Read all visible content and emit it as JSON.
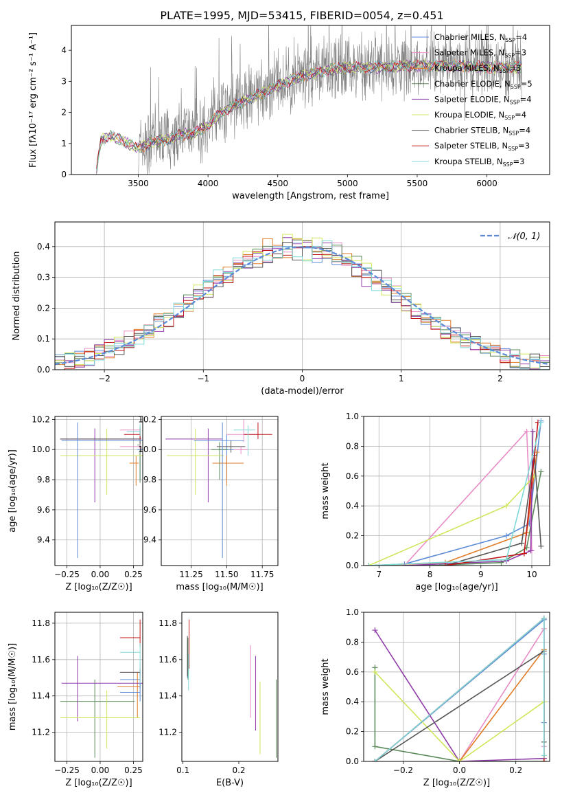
{
  "figure_title": "PLATE=1995, MJD=53415, FIBERID=0054, z=0.451",
  "colors": {
    "model_colors": [
      "#5b8bd8",
      "#e88cc6",
      "#e07b28",
      "#5a8a5a",
      "#8e3ba8",
      "#cfe65a",
      "#555555",
      "#c0141a",
      "#7ed8d8"
    ],
    "gaussian": "#5b8bd8",
    "data": "#808080",
    "grid": "#b0b0b0"
  },
  "chart_data": [
    {
      "type": "line",
      "title": "PLATE=1995, MJD=53415, FIBERID=0054, z=0.451",
      "xlabel": "wavelength [Angstrom, rest frame]",
      "ylabel": "Flux [fλ10⁻¹⁷ erg cm⁻² s⁻¹ A⁻¹]",
      "xlim": [
        3020,
        6450
      ],
      "ylim": [
        0,
        4.8
      ],
      "xticks": [
        3500,
        4000,
        4500,
        5000,
        5500,
        6000
      ],
      "yticks": [
        0,
        1,
        2,
        3,
        4
      ],
      "grid": false,
      "legend_position": "upper right",
      "legend": [
        {
          "main": "Chabrier MILES, N",
          "sub": "SSP",
          "tail": "=4"
        },
        {
          "main": "Salpeter MILES, N",
          "sub": "SSP",
          "tail": "=3"
        },
        {
          "main": "Kroupa MILES, N",
          "sub": "SSP",
          "tail": "=3"
        },
        {
          "main": "Chabrier ELODIE, N",
          "sub": "SSP",
          "tail": "=5"
        },
        {
          "main": "Salpeter ELODIE, N",
          "sub": "SSP",
          "tail": "=4"
        },
        {
          "main": "Kroupa ELODIE, N",
          "sub": "SSP",
          "tail": "=4"
        },
        {
          "main": "Chabrier STELIB, N",
          "sub": "SSP",
          "tail": "=4"
        },
        {
          "main": "Salpeter STELIB, N",
          "sub": "SSP",
          "tail": "=3"
        },
        {
          "main": "Kroupa STELIB, N",
          "sub": "SSP",
          "tail": "=3"
        }
      ],
      "continuum": {
        "x": [
          3200,
          3230,
          3300,
          3400,
          3500,
          3600,
          3700,
          3800,
          3900,
          4000,
          4100,
          4200,
          4300,
          4400,
          4500,
          4600,
          4700,
          4800,
          4900,
          5000,
          5200,
          5400,
          5600,
          5800,
          6000,
          6200
        ],
        "y": [
          0.1,
          1.1,
          1.25,
          1.05,
          0.85,
          1.05,
          1.1,
          1.3,
          1.3,
          1.6,
          2.0,
          2.25,
          2.45,
          2.65,
          2.85,
          3.05,
          3.2,
          3.3,
          3.4,
          3.45,
          3.45,
          3.5,
          3.5,
          3.5,
          3.45,
          3.45
        ]
      },
      "data_start": 3500,
      "data_end": 6250
    },
    {
      "type": "histogram",
      "xlabel": "(data-model)/error",
      "ylabel": "Normed distribution",
      "xlim": [
        -2.5,
        2.5
      ],
      "ylim": [
        0,
        0.48
      ],
      "xticks": [
        -2,
        -1,
        0,
        1,
        2
      ],
      "yticks": [
        0.0,
        0.1,
        0.2,
        0.3,
        0.4
      ],
      "grid": true,
      "legend_position": "upper right",
      "gaussian_label": "𝒩(0, 1)",
      "bin_edges_start": -2.5,
      "bin_width": 0.1
    },
    {
      "type": "scatter",
      "xlabel": "Z [log₁₀(Z/Z☉)]",
      "ylabel": "age  [log₁₀(age/yr)]",
      "xlim": [
        -0.34,
        0.32
      ],
      "ylim": [
        9.23,
        10.22
      ],
      "xticks": [
        -0.25,
        0.0,
        0.25
      ],
      "xticklabels": [
        "−0.25",
        "0.00",
        "0.25"
      ],
      "yticks": [
        9.4,
        9.6,
        9.8,
        10.0,
        10.2
      ],
      "grid": true,
      "points": [
        {
          "x": 0.3,
          "y": 10.0,
          "xerr": [
            0.02,
            0.02
          ],
          "yerr": [
            0.2,
            0.05
          ]
        },
        {
          "x": 0.3,
          "y": 10.13,
          "xerr": [
            0.15,
            0.0
          ],
          "yerr": [
            0.05,
            0.03
          ]
        },
        {
          "x": 0.27,
          "y": 9.91,
          "xerr": [
            0.05,
            0.02
          ],
          "yerr": [
            0.15,
            0.05
          ]
        },
        {
          "x": 0.3,
          "y": 10.03,
          "xerr": [
            0.02,
            0.0
          ],
          "yerr": [
            0.25,
            0.12
          ]
        },
        {
          "x": -0.04,
          "y": 10.07,
          "xerr": [
            0.26,
            0.35
          ],
          "yerr": [
            0.42,
            0.07
          ]
        },
        {
          "x": 0.05,
          "y": 9.96,
          "xerr": [
            0.35,
            0.27
          ],
          "yerr": [
            0.26,
            0.18
          ]
        },
        {
          "x": 0.3,
          "y": 10.07,
          "xerr": [
            0.6,
            0.0
          ],
          "yerr": [
            0.04,
            0.04
          ]
        },
        {
          "x": 0.3,
          "y": 10.1,
          "xerr": [
            0.12,
            0.0
          ],
          "yerr": [
            0.03,
            0.04
          ]
        },
        {
          "x": 0.3,
          "y": 10.12,
          "xerr": [
            0.1,
            0.0
          ],
          "yerr": [
            0.03,
            0.05
          ]
        },
        {
          "x": -0.17,
          "y": 10.06,
          "xerr": [
            0.12,
            0.5
          ],
          "yerr": [
            0.78,
            0.12
          ]
        },
        {
          "x": 0.3,
          "y": 10.02,
          "xerr": [
            0.15,
            0.0
          ],
          "yerr": [
            0.02,
            0.02
          ]
        }
      ]
    },
    {
      "type": "scatter",
      "xlabel": "mass [log₁₀(M/M☉)]",
      "ylabel": "",
      "xlim": [
        11.04,
        11.86
      ],
      "ylim": [
        9.23,
        10.22
      ],
      "xticks": [
        11.25,
        11.5,
        11.75
      ],
      "xticklabels": [
        "11.25",
        "11.50",
        "11.75"
      ],
      "yticks": [
        9.4,
        9.6,
        9.8,
        10.0,
        10.2
      ],
      "grid": true,
      "points": [
        {
          "x": 11.5,
          "y": 10.0,
          "xerr": [
            0.06,
            0.05
          ],
          "yerr": [
            0.2,
            0.1
          ]
        },
        {
          "x": 11.62,
          "y": 10.1,
          "xerr": [
            0.12,
            0.1
          ],
          "yerr": [
            0.05,
            0.1
          ]
        },
        {
          "x": 11.5,
          "y": 9.91,
          "xerr": [
            0.1,
            0.12
          ],
          "yerr": [
            0.15,
            0.05
          ]
        },
        {
          "x": 11.45,
          "y": 10.0,
          "xerr": [
            0.06,
            0.06
          ],
          "yerr": [
            0.2,
            0.05
          ]
        },
        {
          "x": 11.37,
          "y": 10.07,
          "xerr": [
            0.3,
            0.1
          ],
          "yerr": [
            0.42,
            0.07
          ]
        },
        {
          "x": 11.28,
          "y": 9.96,
          "xerr": [
            0.2,
            0.2
          ],
          "yerr": [
            0.26,
            0.18
          ]
        },
        {
          "x": 11.53,
          "y": 10.02,
          "xerr": [
            0.1,
            0.1
          ],
          "yerr": [
            0.04,
            0.04
          ]
        },
        {
          "x": 11.72,
          "y": 10.1,
          "xerr": [
            0.1,
            0.1
          ],
          "yerr": [
            0.03,
            0.08
          ]
        },
        {
          "x": 11.65,
          "y": 10.13,
          "xerr": [
            0.1,
            0.05
          ],
          "yerr": [
            0.17,
            0.03
          ]
        },
        {
          "x": 11.47,
          "y": 10.06,
          "xerr": [
            0.2,
            0.15
          ],
          "yerr": [
            0.78,
            0.12
          ]
        },
        {
          "x": 11.6,
          "y": 10.0,
          "xerr": [
            0.05,
            0.05
          ],
          "yerr": [
            0.03,
            0.02
          ]
        }
      ]
    },
    {
      "type": "line",
      "xlabel": "age  [log₁₀(age/yr)]",
      "ylabel": "mass weight",
      "xlim": [
        6.7,
        10.35
      ],
      "ylim": [
        0,
        1.0
      ],
      "xticks": [
        7,
        8,
        9,
        10
      ],
      "yticks": [
        0.0,
        0.2,
        0.4,
        0.6,
        0.8,
        1.0
      ],
      "grid": true,
      "series": [
        {
          "color_index": 0,
          "x": [
            6.8,
            7.5,
            9.5,
            9.95,
            10.18
          ],
          "y": [
            0.0,
            0.01,
            0.2,
            0.28,
            0.97
          ]
        },
        {
          "color_index": 1,
          "x": [
            7.5,
            9.9,
            10.0
          ],
          "y": [
            0.0,
            0.9,
            0.1
          ]
        },
        {
          "color_index": 2,
          "x": [
            6.8,
            8.3,
            9.9,
            10.1
          ],
          "y": [
            0.0,
            0.02,
            0.22,
            0.76
          ]
        },
        {
          "color_index": 3,
          "x": [
            6.8,
            8.0,
            9.4,
            9.9,
            10.18
          ],
          "y": [
            0.0,
            0.0,
            0.02,
            0.12,
            0.63
          ]
        },
        {
          "color_index": 4,
          "x": [
            7.5,
            9.5,
            9.98,
            10.02
          ],
          "y": [
            0.0,
            0.03,
            0.1,
            0.9
          ]
        },
        {
          "color_index": 5,
          "x": [
            6.8,
            9.5,
            10.05
          ],
          "y": [
            0.0,
            0.4,
            0.6
          ]
        },
        {
          "color_index": 6,
          "x": [
            8.3,
            9.8,
            10.05,
            10.18
          ],
          "y": [
            0.0,
            0.15,
            0.74,
            0.13
          ]
        },
        {
          "color_index": 7,
          "x": [
            8.3,
            9.85,
            10.12
          ],
          "y": [
            0.0,
            0.08,
            0.96
          ]
        },
        {
          "color_index": 8,
          "x": [
            6.8,
            9.5,
            10.18
          ],
          "y": [
            0.0,
            0.04,
            0.96
          ]
        }
      ]
    },
    {
      "type": "scatter",
      "xlabel": "Z [log₁₀(Z/Z☉)]",
      "ylabel": "mass [log₁₀(M/M☉)]",
      "xlim": [
        -0.34,
        0.32
      ],
      "ylim": [
        11.04,
        11.86
      ],
      "xticks": [
        -0.25,
        0.0,
        0.25
      ],
      "xticklabels": [
        "−0.25",
        "0.00",
        "0.25"
      ],
      "yticks": [
        11.2,
        11.4,
        11.6,
        11.8
      ],
      "grid": true,
      "points": [
        {
          "x": 0.3,
          "y": 11.49,
          "xerr": [
            0.15,
            0.0
          ],
          "yerr": [
            0.05,
            0.05
          ]
        },
        {
          "x": 0.3,
          "y": 11.53,
          "xerr": [
            0.15,
            0.0
          ],
          "yerr": [
            0.05,
            0.05
          ]
        },
        {
          "x": 0.28,
          "y": 11.45,
          "xerr": [
            0.15,
            0.02
          ],
          "yerr": [
            0.17,
            0.08
          ]
        },
        {
          "x": -0.04,
          "y": 11.37,
          "xerr": [
            0.26,
            0.3
          ],
          "yerr": [
            0.31,
            0.12
          ]
        },
        {
          "x": -0.17,
          "y": 11.47,
          "xerr": [
            0.12,
            0.5
          ],
          "yerr": [
            0.21,
            0.15
          ]
        },
        {
          "x": 0.05,
          "y": 11.28,
          "xerr": [
            0.35,
            0.25
          ],
          "yerr": [
            0.17,
            0.15
          ]
        },
        {
          "x": 0.3,
          "y": 11.53,
          "xerr": [
            0.15,
            0.0
          ],
          "yerr": [
            0.02,
            0.02
          ]
        },
        {
          "x": 0.3,
          "y": 11.72,
          "xerr": [
            0.15,
            0.0
          ],
          "yerr": [
            0.05,
            0.1
          ]
        },
        {
          "x": 0.3,
          "y": 11.64,
          "xerr": [
            0.15,
            0.0
          ],
          "yerr": [
            0.2,
            0.05
          ]
        },
        {
          "x": 0.3,
          "y": 11.42,
          "xerr": [
            0.15,
            0.0
          ],
          "yerr": [
            0.05,
            0.05
          ]
        }
      ]
    },
    {
      "type": "scatter",
      "xlabel": "E(B-V)",
      "ylabel": "",
      "xlim": [
        0.098,
        0.27
      ],
      "ylim": [
        11.04,
        11.86
      ],
      "xticks": [
        0.1,
        0.2
      ],
      "xticklabels": [
        "0.1",
        "0.2"
      ],
      "yticks": [
        11.2,
        11.4,
        11.6,
        11.8
      ],
      "grid": false,
      "points": [
        {
          "color_index": 0,
          "x": 0.108,
          "y": 11.6,
          "yerr": [
            0.1,
            0.1
          ]
        },
        {
          "color_index": 3,
          "x": 0.109,
          "y": 11.62,
          "yerr": [
            0.13,
            0.1
          ]
        },
        {
          "color_index": 6,
          "x": 0.108,
          "y": 11.58,
          "yerr": [
            0.07,
            0.15
          ]
        },
        {
          "color_index": 7,
          "x": 0.111,
          "y": 11.65,
          "yerr": [
            0.1,
            0.17
          ]
        },
        {
          "color_index": 8,
          "x": 0.11,
          "y": 11.55,
          "yerr": [
            0.12,
            0.08
          ]
        },
        {
          "color_index": 1,
          "x": 0.221,
          "y": 11.48,
          "yerr": [
            0.2,
            0.2
          ]
        },
        {
          "color_index": 4,
          "x": 0.23,
          "y": 11.43,
          "yerr": [
            0.22,
            0.19
          ]
        },
        {
          "color_index": 5,
          "x": 0.238,
          "y": 11.28,
          "yerr": [
            0.2,
            0.2
          ]
        },
        {
          "color_index": 3,
          "x": 0.267,
          "y": 11.28,
          "yerr": [
            0.22,
            0.21
          ]
        }
      ]
    },
    {
      "type": "line",
      "xlabel": "Z [log₁₀(Z/Z☉)]",
      "ylabel": "mass weight",
      "xlim": [
        -0.34,
        0.32
      ],
      "ylim": [
        0,
        1.0
      ],
      "xticks": [
        -0.2,
        0.0,
        0.2
      ],
      "xticklabels": [
        "−0.2",
        "0.0",
        "0.2"
      ],
      "yticks": [
        0.0,
        0.2,
        0.4,
        0.6,
        0.8,
        1.0
      ],
      "grid": true,
      "series": [
        {
          "color_index": 0,
          "x": [
            -0.3,
            0.3,
            0.3,
            0.3
          ],
          "y": [
            0.0,
            0.95,
            0.72,
            0.26
          ]
        },
        {
          "color_index": 1,
          "x": [
            0.0,
            0.3,
            0.3
          ],
          "y": [
            0.0,
            0.89,
            0.1
          ]
        },
        {
          "color_index": 2,
          "x": [
            0.0,
            0.3,
            0.3
          ],
          "y": [
            0.0,
            0.75,
            0.02
          ]
        },
        {
          "color_index": 3,
          "x": [
            -0.3,
            -0.3,
            0.0,
            0.3
          ],
          "y": [
            0.63,
            0.1,
            0.0,
            0.0
          ]
        },
        {
          "color_index": 4,
          "x": [
            -0.3,
            0.0,
            0.3
          ],
          "y": [
            0.88,
            0.0,
            0.02
          ]
        },
        {
          "color_index": 5,
          "x": [
            -0.3,
            0.0,
            0.3,
            0.3
          ],
          "y": [
            0.6,
            0.0,
            0.4,
            0.0
          ]
        },
        {
          "color_index": 6,
          "x": [
            -0.3,
            0.3,
            0.3
          ],
          "y": [
            0.0,
            0.74,
            0.13
          ]
        },
        {
          "color_index": 7,
          "x": [
            -0.3,
            0.3,
            0.3
          ],
          "y": [
            0.0,
            0.96,
            0.0
          ]
        },
        {
          "color_index": 8,
          "x": [
            -0.3,
            0.3,
            0.3
          ],
          "y": [
            0.0,
            0.96,
            0.04
          ]
        }
      ]
    }
  ]
}
